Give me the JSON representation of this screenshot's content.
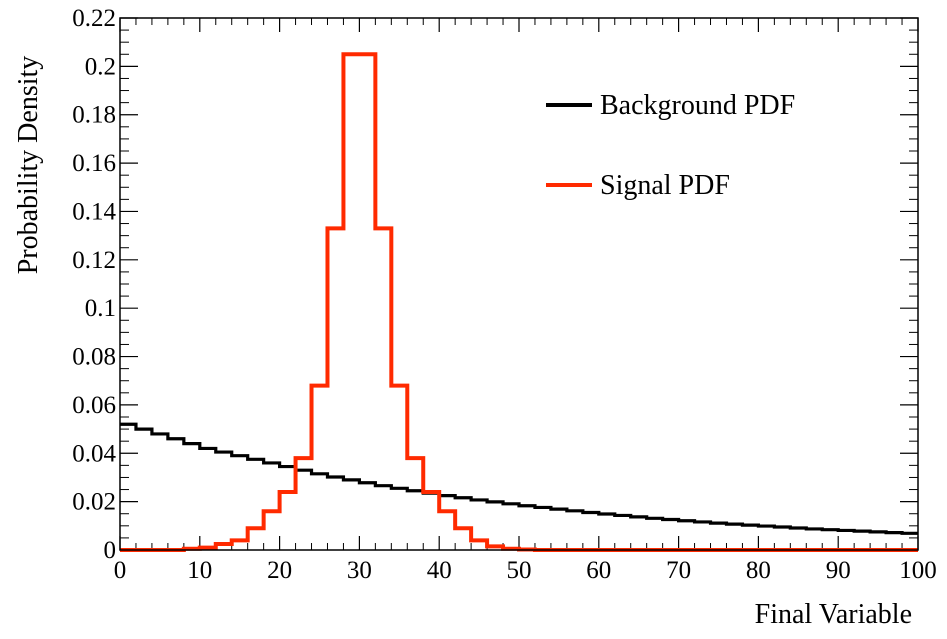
{
  "chart_data": {
    "type": "line",
    "title": "",
    "xlabel": "Final Variable",
    "ylabel": "Probability Density",
    "xlim": [
      0,
      100
    ],
    "ylim": [
      0,
      0.22
    ],
    "grid": false,
    "legend_placement": "top-right",
    "x_ticks": [
      "0",
      "10",
      "20",
      "30",
      "40",
      "50",
      "60",
      "70",
      "80",
      "90",
      "100"
    ],
    "y_ticks": [
      "0",
      "0.02",
      "0.04",
      "0.06",
      "0.08",
      "0.1",
      "0.12",
      "0.14",
      "0.16",
      "0.18",
      "0.2",
      "0.22"
    ],
    "bin_edges": [
      0,
      2,
      4,
      6,
      8,
      10,
      12,
      14,
      16,
      18,
      20,
      22,
      24,
      26,
      28,
      30,
      32,
      34,
      36,
      38,
      40,
      42,
      44,
      46,
      48,
      50,
      52,
      54,
      56,
      58,
      60,
      62,
      64,
      66,
      68,
      70,
      72,
      74,
      76,
      78,
      80,
      82,
      84,
      86,
      88,
      90,
      92,
      94,
      96,
      98,
      100
    ],
    "series": [
      {
        "name": "Background PDF",
        "color": "#000000",
        "style": "step",
        "values": [
          0.052,
          0.05,
          0.048,
          0.046,
          0.044,
          0.042,
          0.0405,
          0.039,
          0.0375,
          0.036,
          0.0345,
          0.033,
          0.0315,
          0.0302,
          0.029,
          0.0278,
          0.0266,
          0.0255,
          0.0245,
          0.0235,
          0.0225,
          0.0216,
          0.0207,
          0.0199,
          0.0191,
          0.0183,
          0.0176,
          0.0169,
          0.0162,
          0.0155,
          0.0149,
          0.0143,
          0.0137,
          0.0131,
          0.0126,
          0.0121,
          0.0116,
          0.0111,
          0.0107,
          0.0103,
          0.0099,
          0.0095,
          0.0091,
          0.0087,
          0.0084,
          0.0081,
          0.0078,
          0.0075,
          0.0072,
          0.0069
        ]
      },
      {
        "name": "Signal PDF",
        "color": "#ff2a00",
        "style": "step",
        "values": [
          0,
          0,
          0,
          0,
          0.0005,
          0.001,
          0.0025,
          0.004,
          0.009,
          0.016,
          0.024,
          0.038,
          0.068,
          0.133,
          0.205,
          0.205,
          0.133,
          0.068,
          0.038,
          0.024,
          0.016,
          0.009,
          0.004,
          0.0015,
          0.0005,
          0.0002,
          0,
          0,
          0,
          0,
          0,
          0,
          0,
          0,
          0,
          0,
          0,
          0,
          0,
          0,
          0,
          0,
          0,
          0,
          0,
          0,
          0,
          0,
          0,
          0
        ]
      }
    ]
  }
}
